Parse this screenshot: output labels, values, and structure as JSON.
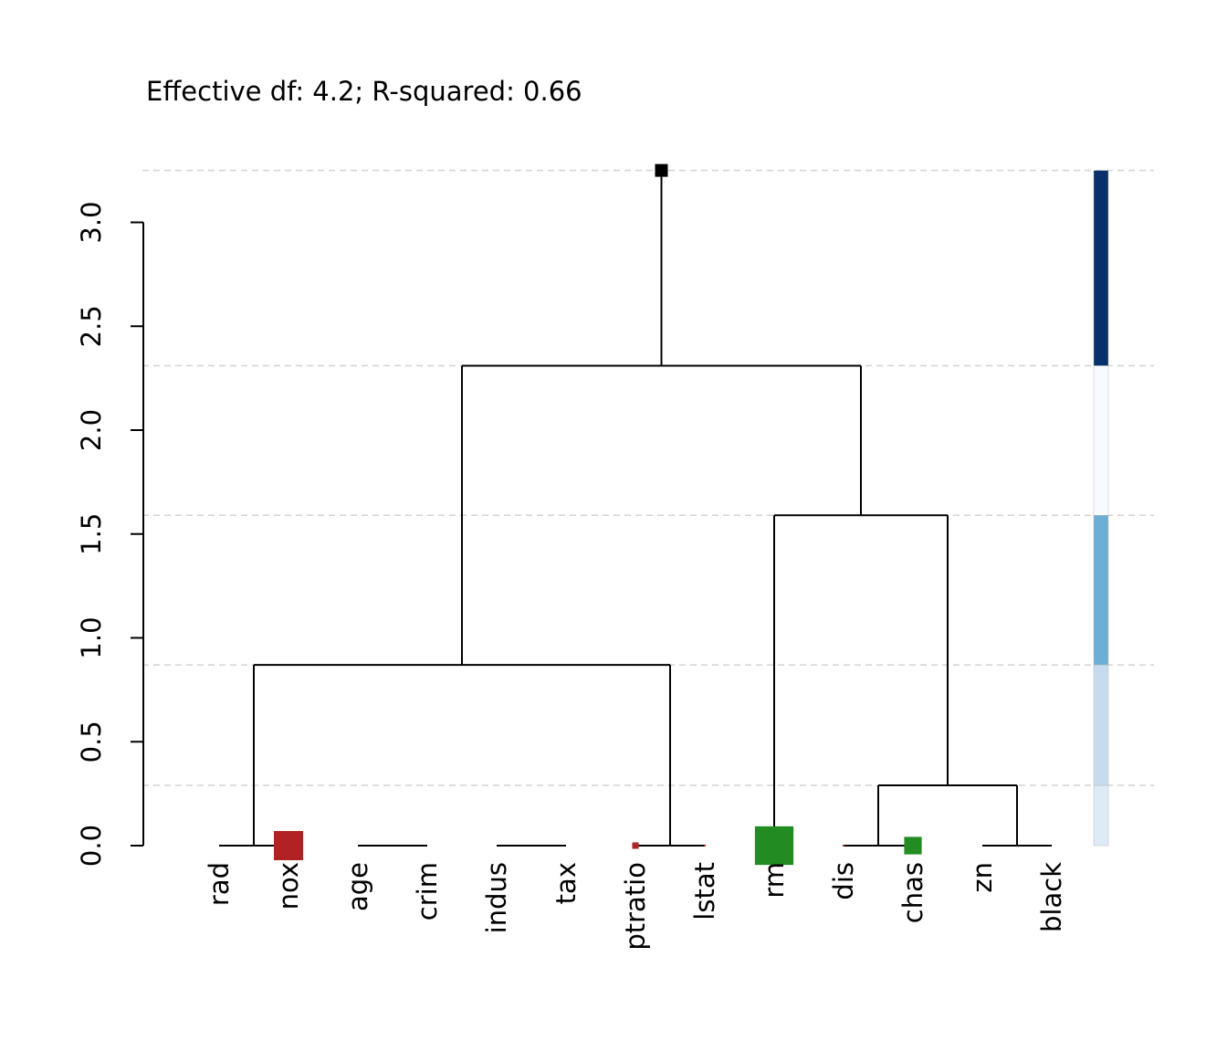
{
  "chart_data": {
    "type": "dendrogram",
    "title": "Effective df: 4.2; R-squared: 0.66",
    "ylim": [
      0,
      3.25
    ],
    "y_ticks": [
      0.0,
      0.5,
      1.0,
      1.5,
      2.0,
      2.5,
      3.0
    ],
    "y_tick_labels": [
      "0.0",
      "0.5",
      "1.0",
      "1.5",
      "2.0",
      "2.5",
      "3.0"
    ],
    "leaves": [
      "rad",
      "nox",
      "age",
      "crim",
      "indus",
      "tax",
      "ptratio",
      "lstat",
      "rm",
      "dis",
      "chas",
      "zn",
      "black"
    ],
    "merges": [
      {
        "name": "rad-nox",
        "left": "leaf:0",
        "right": "leaf:1",
        "height": 0.0
      },
      {
        "name": "age-crim",
        "left": "leaf:2",
        "right": "leaf:3",
        "height": 0.0
      },
      {
        "name": "indus-tax",
        "left": "leaf:4",
        "right": "leaf:5",
        "height": 0.0
      },
      {
        "name": "ptratio-lstat",
        "left": "leaf:6",
        "right": "leaf:7",
        "height": 0.0
      },
      {
        "name": "zn-black",
        "left": "leaf:11",
        "right": "leaf:12",
        "height": 0.0
      },
      {
        "name": "dis-chas",
        "left": "leaf:9",
        "right": "leaf:10",
        "height": 0.0
      },
      {
        "name": "group-a",
        "left": "merge:rad-nox",
        "right": "merge:ptratio-lstat",
        "height": 0.87
      },
      {
        "name": "group-b",
        "left": "merge:dis-chas",
        "right": "merge:zn-black",
        "height": 0.29
      },
      {
        "name": "group-c",
        "left": "leaf:8",
        "right": "merge:group-b",
        "height": 1.59
      },
      {
        "name": "root",
        "left": "merge:group-a",
        "right": "merge:group-c",
        "height": 2.31
      }
    ],
    "root_height": 3.25,
    "cut_heights": [
      0.29,
      0.87,
      1.59,
      2.31,
      3.25
    ],
    "effect_markers": [
      {
        "leaf": "nox",
        "sign": "negative",
        "magnitude": 1.0
      },
      {
        "leaf": "ptratio",
        "sign": "negative",
        "magnitude": 0.22
      },
      {
        "leaf": "lstat",
        "sign": "negative",
        "magnitude": 0.06
      },
      {
        "leaf": "rm",
        "sign": "positive",
        "magnitude": 1.32
      },
      {
        "leaf": "dis",
        "sign": "negative",
        "magnitude": 0.05
      },
      {
        "leaf": "chas",
        "sign": "positive",
        "magnitude": 0.6
      }
    ],
    "colors": {
      "negative": "#b22222",
      "positive": "#228b22",
      "tree": "#000000",
      "grid": "#d3d3d3"
    },
    "side_bar": [
      {
        "from": 0.0,
        "to": 0.29,
        "color": "#deebf7"
      },
      {
        "from": 0.29,
        "to": 0.87,
        "color": "#c6dbef"
      },
      {
        "from": 0.87,
        "to": 1.59,
        "color": "#6baed6"
      },
      {
        "from": 1.59,
        "to": 2.31,
        "color": "#f7fbff"
      },
      {
        "from": 2.31,
        "to": 3.25,
        "color": "#08306b"
      }
    ]
  }
}
